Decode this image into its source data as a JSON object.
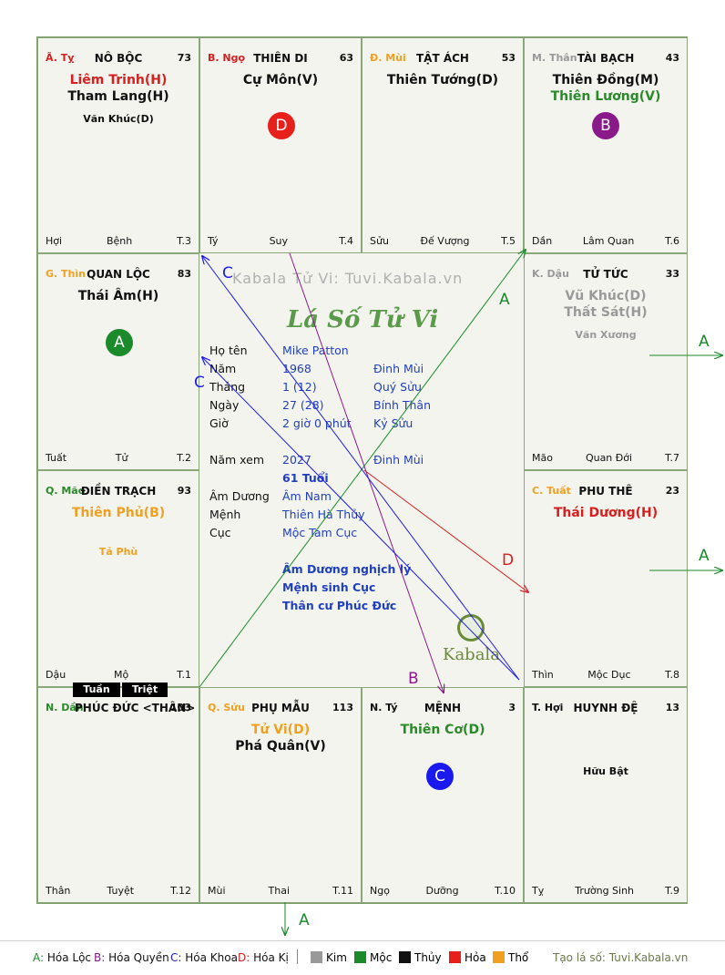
{
  "cells": [
    {
      "id": "ty",
      "pos": "Ã. Tỵ",
      "posColor": "#d62020",
      "house": "NÔ BỘC",
      "num": "73",
      "stars": [
        {
          "t": "Liêm Trinh(H)",
          "c": "#d62020"
        },
        {
          "t": "Tham Lang(H)",
          "c": "#111111"
        }
      ],
      "minor": {
        "t": "Văn Khúc(D)",
        "c": "#111111"
      },
      "left": "Hợi",
      "mid": "Bệnh",
      "right": "T.3"
    },
    {
      "id": "ngo",
      "pos": "B. Ngọ",
      "posColor": "#d62020",
      "house": "THIÊN DI",
      "num": "63",
      "stars": [
        {
          "t": "Cự Môn(V)",
          "c": "#111111"
        }
      ],
      "minor": {
        "t": "",
        "c": "#111111"
      },
      "left": "Tý",
      "mid": "Suy",
      "right": "T.4"
    },
    {
      "id": "mui",
      "pos": "Đ. Mùi",
      "posColor": "#f0a020",
      "house": "TẬT ÁCH",
      "num": "53",
      "stars": [
        {
          "t": "Thiên Tướng(D)",
          "c": "#111111"
        }
      ],
      "minor": {
        "t": "",
        "c": "#111111"
      },
      "left": "Sửu",
      "mid": "Đế Vượng",
      "right": "T.5"
    },
    {
      "id": "than",
      "pos": "M. Thân",
      "posColor": "#999999",
      "house": "TÀI BẠCH",
      "num": "43",
      "stars": [
        {
          "t": "Thiên Đồng(M)",
          "c": "#111111"
        },
        {
          "t": "Thiên Lương(V)",
          "c": "#2a8a2a"
        }
      ],
      "minor": {
        "t": "",
        "c": "#111111"
      },
      "left": "Dần",
      "mid": "Lâm Quan",
      "right": "T.6"
    },
    {
      "id": "thin",
      "pos": "G. Thìn",
      "posColor": "#f0a020",
      "house": "QUAN LỘC",
      "num": "83",
      "stars": [
        {
          "t": "Thái Âm(H)",
          "c": "#111111"
        }
      ],
      "minor": {
        "t": "",
        "c": "#111111"
      },
      "left": "Tuất",
      "mid": "Tử",
      "right": "T.2"
    },
    {
      "id": "dau",
      "pos": "K. Dậu",
      "posColor": "#999999",
      "house": "TỬ TỨC",
      "num": "33",
      "stars": [
        {
          "t": "Vũ Khúc(D)",
          "c": "#999999"
        },
        {
          "t": "Thất Sát(H)",
          "c": "#999999"
        }
      ],
      "minor": {
        "t": "Văn Xương",
        "c": "#999999"
      },
      "left": "Mão",
      "mid": "Quan Đới",
      "right": "T.7"
    },
    {
      "id": "mao",
      "pos": "Q. Mão",
      "posColor": "#2a8a2a",
      "house": "ĐIỀN TRẠCH",
      "num": "93",
      "stars": [
        {
          "t": "Thiên Phủ(B)",
          "c": "#f0a020"
        }
      ],
      "minor": {
        "t": "Tả Phù",
        "c": "#f0a020"
      },
      "left": "Dậu",
      "mid": "Mộ",
      "right": "T.1"
    },
    {
      "id": "tuat",
      "pos": "C. Tuất",
      "posColor": "#f0a020",
      "house": "PHU THÊ",
      "num": "23",
      "stars": [
        {
          "t": "Thái Dương(H)",
          "c": "#d62020"
        }
      ],
      "minor": {
        "t": "",
        "c": "#111111"
      },
      "left": "Thìn",
      "mid": "Mộc Dục",
      "right": "T.8"
    },
    {
      "id": "dan",
      "pos": "N. Dần",
      "posColor": "#2a8a2a",
      "house": "PHÚC ĐỨC <THÂN>",
      "num": "103",
      "stars": [],
      "minor": {
        "t": "",
        "c": "#111111"
      },
      "left": "Thân",
      "mid": "Tuyệt",
      "right": "T.12"
    },
    {
      "id": "suu",
      "pos": "Q. Sửu",
      "posColor": "#f0a020",
      "house": "PHỤ MẪU",
      "num": "113",
      "stars": [
        {
          "t": "Tử Vi(D)",
          "c": "#f0a020"
        },
        {
          "t": "Phá Quân(V)",
          "c": "#111111"
        }
      ],
      "minor": {
        "t": "",
        "c": "#111111"
      },
      "left": "Mùi",
      "mid": "Thai",
      "right": "T.11"
    },
    {
      "id": "ti",
      "pos": "N. Tý",
      "posColor": "#111111",
      "house": "MỆNH",
      "num": "3",
      "stars": [
        {
          "t": "Thiên Cơ(D)",
          "c": "#2a8a2a"
        }
      ],
      "minor": {
        "t": "",
        "c": "#111111"
      },
      "left": "Ngọ",
      "mid": "Dưỡng",
      "right": "T.10"
    },
    {
      "id": "hoi",
      "pos": "T. Hợi",
      "posColor": "#111111",
      "house": "HUYNH ĐỆ",
      "num": "13",
      "stars": [],
      "minor": {
        "t": "Hữu Bật",
        "c": "#111111"
      },
      "left": "Tỵ",
      "mid": "Trường Sinh",
      "right": "T.9"
    }
  ],
  "badges": [
    {
      "cell": "ngo",
      "label": "D",
      "color": "#e8201c"
    },
    {
      "cell": "than",
      "label": "B",
      "color": "#8a1a8a"
    },
    {
      "cell": "thin",
      "label": "A",
      "color": "#1a8a2a"
    },
    {
      "cell": "ti",
      "label": "C",
      "color": "#1a1aee"
    }
  ],
  "tags": {
    "tuan": "Tuần",
    "triet": "Triệt"
  },
  "center": {
    "watermark": "Kabala Tử Vi: Tuvi.Kabala.vn",
    "title": "Lá Số Tử Vi",
    "rows": [
      {
        "k": "Họ tên",
        "v": "Mike Patton",
        "w": ""
      },
      {
        "k": "Năm",
        "v": "1968",
        "w": "Đinh Mùi"
      },
      {
        "k": "Tháng",
        "v": "1  (12)",
        "w": "Quý Sửu"
      },
      {
        "k": "Ngày",
        "v": "27  (28)",
        "w": "Bính Thân"
      },
      {
        "k": "Giờ",
        "v": "2 giờ 0 phút",
        "w": "Kỷ Sửu"
      }
    ],
    "namxem_k": "Năm xem",
    "namxem_v": "2027",
    "namxem_w": "Đinh Mùi",
    "tuoi": "61 Tuổi",
    "rows2": [
      {
        "k": "Âm Dương",
        "v": "Âm Nam"
      },
      {
        "k": "Mệnh",
        "v": "Thiên Hà Thủy"
      },
      {
        "k": "Cục",
        "v": "Mộc Tam Cục"
      }
    ],
    "notes": [
      "Âm Dương nghịch lý",
      "Mệnh sinh Cục",
      "Thân cư Phúc Đức"
    ],
    "logo": "Kabala"
  },
  "arrow_labels": {
    "A": "A",
    "B": "B",
    "C": "C",
    "D": "D"
  },
  "legend": {
    "hoa": [
      {
        "k": "A:",
        "v": " Hóa Lộc",
        "c": "#1a8a2a"
      },
      {
        "k": "B:",
        "v": " Hóa Quyền",
        "c": "#8a1a8a"
      },
      {
        "k": "C:",
        "v": " Hóa Khoa",
        "c": "#1a1aee"
      },
      {
        "k": "D:",
        "v": " Hóa Kị",
        "c": "#d62020"
      }
    ],
    "elements": [
      {
        "name": "Kim",
        "color": "#999999"
      },
      {
        "name": "Mộc",
        "color": "#1a8a2a"
      },
      {
        "name": "Thủy",
        "color": "#111111"
      },
      {
        "name": "Hỏa",
        "color": "#e8201c"
      },
      {
        "name": "Thổ",
        "color": "#f0a020"
      }
    ],
    "site": "Tạo lá số: Tuvi.Kabala.vn"
  },
  "colors": {
    "A": "#1a8a2a",
    "B": "#8a1a8a",
    "C": "#1a1aee",
    "D": "#d62020"
  }
}
